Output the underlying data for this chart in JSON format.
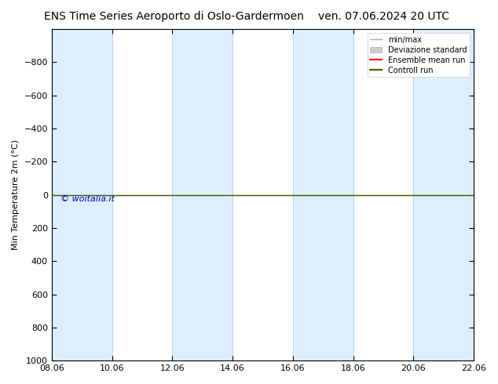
{
  "title_left": "ENS Time Series Aeroporto di Oslo-Gardermoen",
  "title_right": "ven. 07.06.2024 20 UTC",
  "ylabel": "Min Temperature 2m (°C)",
  "ylim": [
    -1000,
    1000
  ],
  "yticks": [
    -800,
    -600,
    -400,
    -200,
    0,
    200,
    400,
    600,
    800,
    1000
  ],
  "xtick_labels": [
    "08.06",
    "10.06",
    "12.06",
    "14.06",
    "16.06",
    "18.06",
    "20.06",
    "22.06"
  ],
  "xtick_positions": [
    0,
    2,
    4,
    6,
    8,
    10,
    12,
    14
  ],
  "shaded_bands": [
    [
      0,
      2
    ],
    [
      4,
      6
    ],
    [
      8,
      10
    ],
    [
      12,
      14
    ]
  ],
  "band_color": "#ddeeff",
  "band_border_color": "#aaccee",
  "ensemble_mean_y": 0,
  "control_run_y": 0,
  "ensemble_mean_color": "#ff0000",
  "control_run_color": "#336600",
  "minmax_color": "#aaaaaa",
  "std_color": "#cccccc",
  "watermark": "© woitalia.it",
  "watermark_color": "#0000cc",
  "background_color": "#ffffff",
  "legend_labels": [
    "min/max",
    "Deviazione standard",
    "Ensemble mean run",
    "Controll run"
  ],
  "legend_colors": [
    "#aaaaaa",
    "#cccccc",
    "#ff0000",
    "#336600"
  ],
  "title_fontsize": 10,
  "axis_label_fontsize": 8,
  "tick_fontsize": 8
}
